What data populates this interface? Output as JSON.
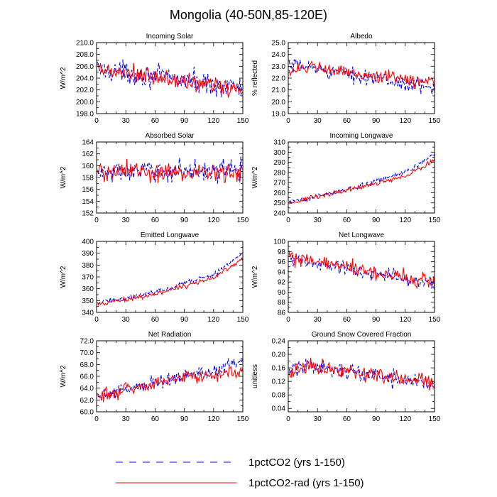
{
  "figure": {
    "title": "Mongolia (40-50N,85-120E)"
  },
  "legend": {
    "placement": "bottom-center",
    "entries": [
      {
        "label": "1pctCO2 (yrs 1-150)",
        "color": "#0000ff",
        "dash": "dashed"
      },
      {
        "label": "1pctCO2-rad (yrs 1-150)",
        "color": "#ff0000",
        "dash": "solid"
      }
    ]
  },
  "colors": {
    "series_1": "#0000ff",
    "series_2": "#ff0000"
  },
  "chart_data": [
    {
      "type": "line",
      "title": "Incoming Solar",
      "xlabel": "",
      "ylabel": "W/m^2",
      "xlim": [
        0,
        150
      ],
      "ylim": [
        198,
        210
      ],
      "xticks": [
        "0",
        "30",
        "60",
        "90",
        "120",
        "150"
      ],
      "yticks": [
        "198.0",
        "200.0",
        "202.0",
        "204.0",
        "206.0",
        "208.0",
        "210.0"
      ],
      "series": [
        {
          "name": "1pctCO2 (yrs 1-150)",
          "trend": [
            [
              0,
              205.6
            ],
            [
              150,
              202.3
            ]
          ],
          "noise": 1.6,
          "x": [],
          "values": []
        },
        {
          "name": "1pctCO2-rad (yrs 1-150)",
          "trend": [
            [
              0,
              205.3
            ],
            [
              150,
              202.1
            ]
          ],
          "noise": 1.5,
          "x": [],
          "values": []
        }
      ]
    },
    {
      "type": "line",
      "title": "Albedo",
      "xlabel": "",
      "ylabel": "% reflected",
      "xlim": [
        0,
        150
      ],
      "ylim": [
        19,
        25
      ],
      "xticks": [
        "0",
        "30",
        "60",
        "90",
        "120",
        "150"
      ],
      "yticks": [
        "19.0",
        "20.0",
        "21.0",
        "22.0",
        "23.0",
        "24.0",
        "25.0"
      ],
      "series": [
        {
          "name": "1pctCO2 (yrs 1-150)",
          "trend": [
            [
              0,
              22.9
            ],
            [
              15,
              23.0
            ],
            [
              150,
              21.1
            ]
          ],
          "noise": 0.55,
          "x": [],
          "values": []
        },
        {
          "name": "1pctCO2-rad (yrs 1-150)",
          "trend": [
            [
              0,
              22.7
            ],
            [
              15,
              22.9
            ],
            [
              150,
              21.6
            ]
          ],
          "noise": 0.5,
          "x": [],
          "values": []
        }
      ]
    },
    {
      "type": "line",
      "title": "Absorbed Solar",
      "xlabel": "",
      "ylabel": "W/m^2",
      "xlim": [
        0,
        150
      ],
      "ylim": [
        152,
        164
      ],
      "xticks": [
        "0",
        "30",
        "60",
        "90",
        "120",
        "150"
      ],
      "yticks": [
        "152",
        "154",
        "156",
        "158",
        "160",
        "162",
        "164"
      ],
      "series": [
        {
          "name": "1pctCO2 (yrs 1-150)",
          "trend": [
            [
              0,
              158.8
            ],
            [
              150,
              159.4
            ]
          ],
          "noise": 1.5,
          "x": [],
          "values": []
        },
        {
          "name": "1pctCO2-rad (yrs 1-150)",
          "trend": [
            [
              0,
              159.0
            ],
            [
              150,
              158.8
            ]
          ],
          "noise": 1.6,
          "x": [],
          "values": []
        }
      ]
    },
    {
      "type": "line",
      "title": "Incoming Longwave",
      "xlabel": "",
      "ylabel": "W/m^2",
      "xlim": [
        0,
        150
      ],
      "ylim": [
        240,
        310
      ],
      "xticks": [
        "0",
        "30",
        "60",
        "90",
        "120",
        "150"
      ],
      "yticks": [
        "240",
        "250",
        "260",
        "270",
        "280",
        "290",
        "300",
        "310"
      ],
      "series": [
        {
          "name": "1pctCO2 (yrs 1-150)",
          "trend": [
            [
              0,
              250
            ],
            [
              60,
              263
            ],
            [
              120,
              280
            ],
            [
              150,
              298
            ]
          ],
          "noise": 2.2,
          "x": [],
          "values": []
        },
        {
          "name": "1pctCO2-rad (yrs 1-150)",
          "trend": [
            [
              0,
              250
            ],
            [
              60,
              262
            ],
            [
              120,
              276
            ],
            [
              150,
              292
            ]
          ],
          "noise": 2.0,
          "x": [],
          "values": []
        }
      ]
    },
    {
      "type": "line",
      "title": "Emitted Longwave",
      "xlabel": "",
      "ylabel": "W/m^2",
      "xlim": [
        0,
        150
      ],
      "ylim": [
        340,
        400
      ],
      "xticks": [
        "0",
        "30",
        "60",
        "90",
        "120",
        "150"
      ],
      "yticks": [
        "340",
        "350",
        "360",
        "370",
        "380",
        "390",
        "400"
      ],
      "series": [
        {
          "name": "1pctCO2 (yrs 1-150)",
          "trend": [
            [
              0,
              348
            ],
            [
              60,
              357
            ],
            [
              120,
              372
            ],
            [
              150,
              390
            ]
          ],
          "noise": 1.8,
          "x": [],
          "values": []
        },
        {
          "name": "1pctCO2-rad (yrs 1-150)",
          "trend": [
            [
              0,
              347
            ],
            [
              60,
              355
            ],
            [
              120,
              369
            ],
            [
              150,
              386
            ]
          ],
          "noise": 1.8,
          "x": [],
          "values": []
        }
      ]
    },
    {
      "type": "line",
      "title": "Net Longwave",
      "xlabel": "",
      "ylabel": "W/m^2",
      "xlim": [
        0,
        150
      ],
      "ylim": [
        86,
        100
      ],
      "xticks": [
        "0",
        "30",
        "60",
        "90",
        "120",
        "150"
      ],
      "yticks": [
        "86",
        "88",
        "90",
        "92",
        "94",
        "96",
        "98",
        "100"
      ],
      "series": [
        {
          "name": "1pctCO2 (yrs 1-150)",
          "trend": [
            [
              0,
              96.5
            ],
            [
              150,
              91.5
            ]
          ],
          "noise": 1.3,
          "x": [],
          "values": []
        },
        {
          "name": "1pctCO2-rad (yrs 1-150)",
          "trend": [
            [
              0,
              96.8
            ],
            [
              150,
              92.0
            ]
          ],
          "noise": 1.3,
          "x": [],
          "values": []
        }
      ]
    },
    {
      "type": "line",
      "title": "Net Radiation",
      "xlabel": "",
      "ylabel": "W/m^2",
      "xlim": [
        0,
        150
      ],
      "ylim": [
        60,
        72
      ],
      "xticks": [
        "0",
        "30",
        "60",
        "90",
        "120",
        "150"
      ],
      "yticks": [
        "60.0",
        "62.0",
        "64.0",
        "66.0",
        "68.0",
        "70.0",
        "72.0"
      ],
      "series": [
        {
          "name": "1pctCO2 (yrs 1-150)",
          "trend": [
            [
              0,
              62.5
            ],
            [
              60,
              65.0
            ],
            [
              120,
              67.0
            ],
            [
              150,
              68.8
            ]
          ],
          "noise": 1.0,
          "x": [],
          "values": []
        },
        {
          "name": "1pctCO2-rad (yrs 1-150)",
          "trend": [
            [
              0,
              62.8
            ],
            [
              60,
              64.8
            ],
            [
              120,
              66.5
            ],
            [
              150,
              66.8
            ]
          ],
          "noise": 1.0,
          "x": [],
          "values": []
        }
      ]
    },
    {
      "type": "line",
      "title": "Ground Snow Covered Fraction",
      "xlabel": "",
      "ylabel": "unitless",
      "xlim": [
        0,
        150
      ],
      "ylim": [
        0.03,
        0.24
      ],
      "xticks": [
        "0",
        "30",
        "60",
        "90",
        "120",
        "150"
      ],
      "yticks": [
        "0.04",
        "0.08",
        "0.12",
        "0.16",
        "0.20",
        "0.24"
      ],
      "series": [
        {
          "name": "1pctCO2 (yrs 1-150)",
          "trend": [
            [
              0,
              0.145
            ],
            [
              15,
              0.17
            ],
            [
              150,
              0.11
            ]
          ],
          "noise": 0.022,
          "x": [],
          "values": []
        },
        {
          "name": "1pctCO2-rad (yrs 1-150)",
          "trend": [
            [
              0,
              0.135
            ],
            [
              15,
              0.165
            ],
            [
              150,
              0.115
            ]
          ],
          "noise": 0.02,
          "x": [],
          "values": []
        }
      ]
    }
  ]
}
